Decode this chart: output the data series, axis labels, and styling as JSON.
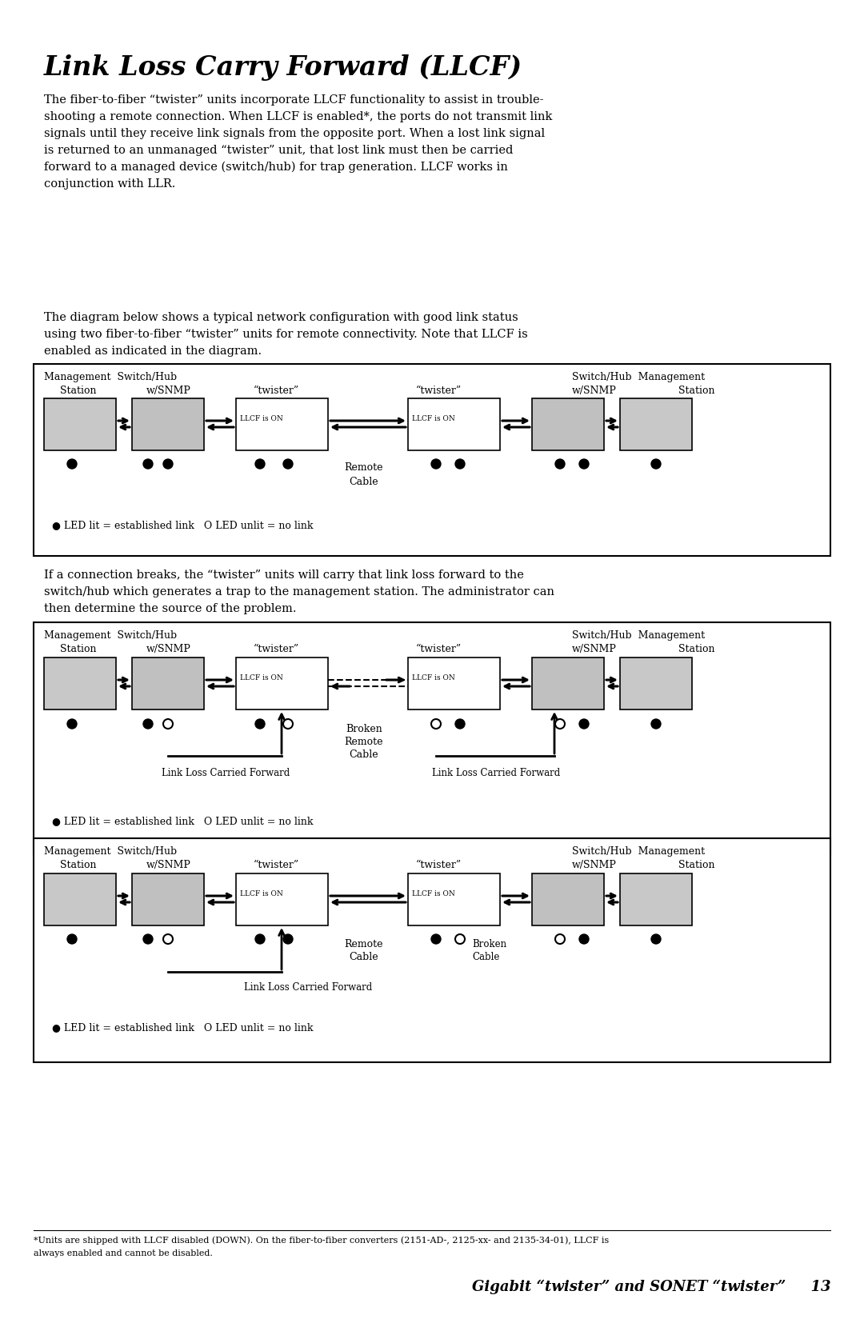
{
  "title": "Link Loss Carry Forward (LLCF)",
  "bg_color": "#ffffff",
  "para1_line1": "The fiber-to-fiber “twister” units incorporate LLCF functionality to assist in trouble-",
  "para1_line2": "shooting a remote connection. When LLCF is enabled*, the ports do not transmit link",
  "para1_line3": "signals until they receive link signals from the opposite port. When a lost link signal",
  "para1_line4": "is returned to an unmanaged “twister” unit, that lost link must then be carried",
  "para1_line5": "forward to a managed device (switch/hub) for trap generation. LLCF works in",
  "para1_line6": "conjunction with LLR.",
  "para2_line1": "The diagram below shows a typical network configuration with good link status",
  "para2_line2": "using two fiber-to-fiber “twister” units for remote connectivity. Note that LLCF is",
  "para2_line3": "enabled as indicated in the diagram.",
  "para3_line1": "If a connection breaks, the “twister” units will carry that link loss forward to the",
  "para3_line2": "switch/hub which generates a trap to the management station. The administrator can",
  "para3_line3": "then determine the source of the problem.",
  "footer_note1": "*Units are shipped with LLCF disabled (DOWN). On the fiber-to-fiber converters (2151-AD-, 2125-xx- and 2135-34-01), LLCF is",
  "footer_note2": "always enabled and cannot be disabled.",
  "footer_right": "Gigabit “twister” and SONET “twister”     13"
}
